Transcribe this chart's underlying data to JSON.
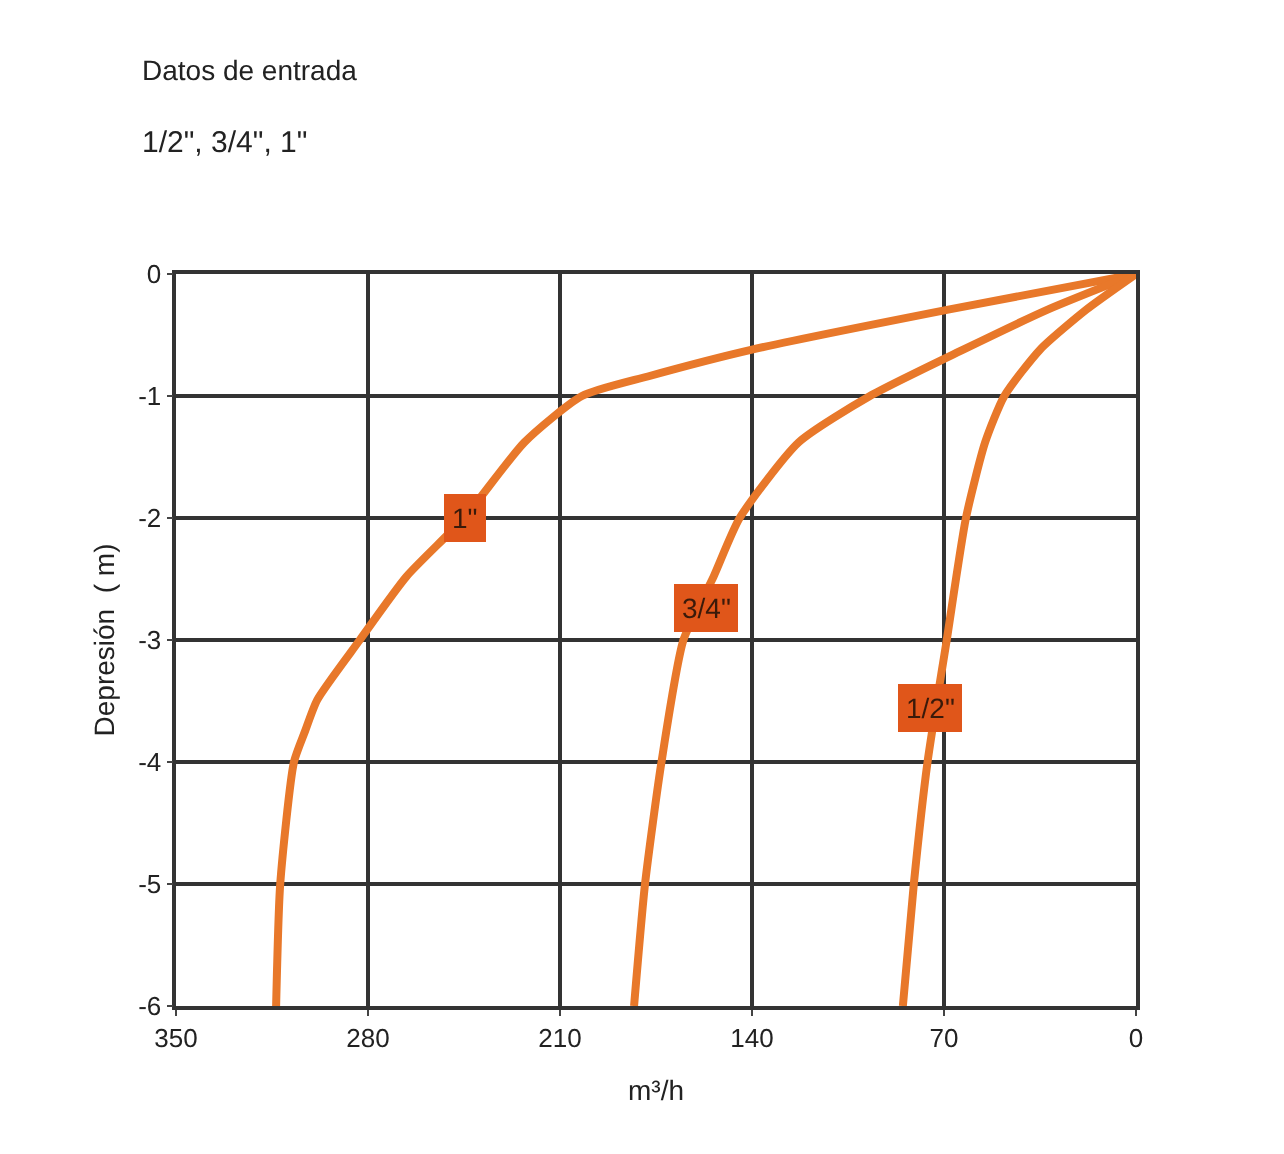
{
  "chart_data": {
    "type": "line",
    "title": "Datos de entrada",
    "subtitle": "1/2\", 3/4\", 1\"",
    "xlabel": "m³/h",
    "ylabel": "Depresión  ( m)",
    "series": [
      {
        "color": "#e8782a",
        "x": [
          0,
          68,
          140,
          178,
          202,
          223,
          245,
          266,
          283,
          298.5,
          303,
          307,
          312,
          313.5
        ],
        "values": [
          0,
          -0.29,
          -0.62,
          -0.84,
          -1,
          -1.38,
          -2,
          -2.48,
          -3,
          -3.49,
          -3.75,
          -4,
          -5,
          -6
        ]
      },
      {
        "color": "#e8782a",
        "x": [
          0,
          32,
          63,
          97,
          123,
          144.5,
          154,
          165,
          173,
          179,
          183
        ],
        "values": [
          0,
          -0.29,
          -0.62,
          -1,
          -1.38,
          -2,
          -2.48,
          -3,
          -4,
          -5,
          -6
        ]
      },
      {
        "color": "#e8782a",
        "x": [
          0,
          18,
          35,
          48,
          55,
          62,
          69,
          76,
          81,
          85
        ],
        "values": [
          0,
          -0.29,
          -0.62,
          -1,
          -1.38,
          -2,
          -3,
          -4,
          -5,
          -6
        ]
      }
    ],
    "annotations": [
      {
        "text": "1\"",
        "x": 245,
        "y": -2
      },
      {
        "text": "3/4\"",
        "x": 157,
        "y": -2.74
      },
      {
        "text": "1/2\"",
        "x": 75,
        "y": -3.55
      }
    ],
    "xlim": [
      350,
      0
    ],
    "xticks": [
      350,
      280,
      210,
      140,
      70,
      0
    ],
    "ylim": [
      -6,
      0
    ],
    "yticks": [
      0,
      -1,
      -2,
      -3,
      -4,
      -5,
      -6
    ],
    "grid": true,
    "marker": "none",
    "line_style": "solid"
  }
}
